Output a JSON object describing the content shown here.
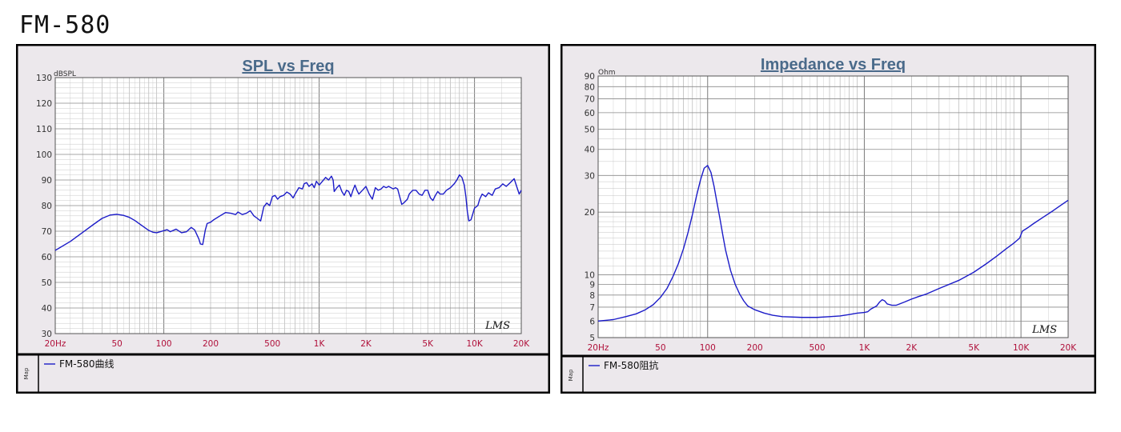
{
  "page": {
    "title": "FM-580"
  },
  "colors": {
    "line": "#1c1cc8",
    "plot_bg": "#ffffff",
    "frame_bg": "#ece8ec",
    "title": "#4a6a8a",
    "tick_x": "#b0103a",
    "grid": "#a8a8a8",
    "border": "#000000"
  },
  "chart_data": [
    {
      "type": "line",
      "title": "SPL vs Freq",
      "unit_label": "dBSPL",
      "xscale": "log",
      "xlim": [
        20,
        20000
      ],
      "ylim": [
        30,
        130
      ],
      "x_tick_labels": [
        {
          "v": 20,
          "label": "20Hz"
        },
        {
          "v": 50,
          "label": "50"
        },
        {
          "v": 100,
          "label": "100"
        },
        {
          "v": 200,
          "label": "200"
        },
        {
          "v": 500,
          "label": "500"
        },
        {
          "v": 1000,
          "label": "1K"
        },
        {
          "v": 2000,
          "label": "2K"
        },
        {
          "v": 5000,
          "label": "5K"
        },
        {
          "v": 10000,
          "label": "10K"
        },
        {
          "v": 20000,
          "label": "20K"
        }
      ],
      "y_ticks": [
        30,
        40,
        50,
        60,
        70,
        80,
        90,
        100,
        110,
        120,
        130
      ],
      "watermark": "LMS",
      "side_label": "Map",
      "legend": [
        {
          "name": "FM-580曲线"
        }
      ],
      "series": [
        {
          "name": "FM-580曲线",
          "points": [
            [
              20,
              62.5
            ],
            [
              25,
              66
            ],
            [
              30,
              69.5
            ],
            [
              35,
              72.5
            ],
            [
              40,
              75
            ],
            [
              45,
              76.3
            ],
            [
              50,
              76.6
            ],
            [
              55,
              76.2
            ],
            [
              60,
              75.4
            ],
            [
              65,
              74.2
            ],
            [
              70,
              72.8
            ],
            [
              75,
              71.5
            ],
            [
              80,
              70.3
            ],
            [
              85,
              69.6
            ],
            [
              90,
              69.4
            ],
            [
              100,
              70.2
            ],
            [
              105,
              70.6
            ],
            [
              110,
              69.8
            ],
            [
              120,
              70.8
            ],
            [
              130,
              69.4
            ],
            [
              140,
              69.8
            ],
            [
              150,
              71.5
            ],
            [
              158,
              70.5
            ],
            [
              168,
              67
            ],
            [
              172,
              65
            ],
            [
              178,
              64.8
            ],
            [
              185,
              70.5
            ],
            [
              190,
              73
            ],
            [
              200,
              73.5
            ],
            [
              210,
              74.5
            ],
            [
              230,
              76
            ],
            [
              250,
              77.3
            ],
            [
              270,
              77
            ],
            [
              290,
              76.5
            ],
            [
              300,
              77.5
            ],
            [
              320,
              76.5
            ],
            [
              340,
              77
            ],
            [
              360,
              78
            ],
            [
              380,
              76
            ],
            [
              400,
              75
            ],
            [
              420,
              74
            ],
            [
              440,
              79.5
            ],
            [
              460,
              81
            ],
            [
              480,
              80
            ],
            [
              500,
              83.5
            ],
            [
              520,
              84
            ],
            [
              540,
              82.5
            ],
            [
              560,
              83.5
            ],
            [
              590,
              84
            ],
            [
              620,
              85.3
            ],
            [
              650,
              84.5
            ],
            [
              680,
              83
            ],
            [
              700,
              84.5
            ],
            [
              740,
              87
            ],
            [
              780,
              86.5
            ],
            [
              800,
              88.5
            ],
            [
              830,
              89
            ],
            [
              860,
              87.5
            ],
            [
              900,
              88.5
            ],
            [
              930,
              87
            ],
            [
              960,
              89.5
            ],
            [
              1000,
              88
            ],
            [
              1050,
              89.5
            ],
            [
              1100,
              91
            ],
            [
              1150,
              90
            ],
            [
              1200,
              91.5
            ],
            [
              1230,
              90
            ],
            [
              1250,
              85.5
            ],
            [
              1300,
              87
            ],
            [
              1350,
              88
            ],
            [
              1400,
              85.5
            ],
            [
              1450,
              84
            ],
            [
              1500,
              86
            ],
            [
              1550,
              85.5
            ],
            [
              1600,
              83.5
            ],
            [
              1650,
              86
            ],
            [
              1700,
              88
            ],
            [
              1750,
              86
            ],
            [
              1800,
              84.5
            ],
            [
              1900,
              86
            ],
            [
              2000,
              87.5
            ],
            [
              2100,
              84.5
            ],
            [
              2200,
              82.5
            ],
            [
              2300,
              87
            ],
            [
              2400,
              86
            ],
            [
              2500,
              86.5
            ],
            [
              2600,
              87.5
            ],
            [
              2700,
              87
            ],
            [
              2800,
              87.5
            ],
            [
              2900,
              87
            ],
            [
              3000,
              86.5
            ],
            [
              3100,
              87
            ],
            [
              3200,
              86.5
            ],
            [
              3300,
              83.5
            ],
            [
              3400,
              80.5
            ],
            [
              3500,
              81
            ],
            [
              3700,
              82.5
            ],
            [
              3800,
              84.5
            ],
            [
              4000,
              86
            ],
            [
              4200,
              86
            ],
            [
              4400,
              84.5
            ],
            [
              4600,
              84
            ],
            [
              4800,
              86
            ],
            [
              5000,
              86
            ],
            [
              5200,
              83
            ],
            [
              5400,
              82
            ],
            [
              5600,
              84
            ],
            [
              5800,
              85.5
            ],
            [
              6000,
              84.5
            ],
            [
              6300,
              84.5
            ],
            [
              6600,
              86
            ],
            [
              7000,
              87
            ],
            [
              7400,
              88.5
            ],
            [
              7700,
              90
            ],
            [
              8000,
              92
            ],
            [
              8300,
              91
            ],
            [
              8600,
              88
            ],
            [
              8800,
              83.5
            ],
            [
              9000,
              77.5
            ],
            [
              9200,
              74
            ],
            [
              9500,
              74.5
            ],
            [
              10000,
              79
            ],
            [
              10500,
              80
            ],
            [
              10800,
              82.5
            ],
            [
              11200,
              84.5
            ],
            [
              11800,
              83.5
            ],
            [
              12300,
              85
            ],
            [
              13000,
              84
            ],
            [
              13600,
              86.5
            ],
            [
              14400,
              87
            ],
            [
              15200,
              88.5
            ],
            [
              16000,
              87.5
            ],
            [
              17000,
              89
            ],
            [
              18000,
              90.5
            ],
            [
              18800,
              87
            ],
            [
              19400,
              84.5
            ],
            [
              20000,
              86
            ]
          ]
        }
      ]
    },
    {
      "type": "line",
      "title": "Impedance vs Freq",
      "unit_label": "Ohm",
      "xscale": "log",
      "yscale": "log",
      "xlim": [
        20,
        20000
      ],
      "ylim": [
        5,
        90
      ],
      "x_tick_labels": [
        {
          "v": 20,
          "label": "20Hz"
        },
        {
          "v": 50,
          "label": "50"
        },
        {
          "v": 100,
          "label": "100"
        },
        {
          "v": 200,
          "label": "200"
        },
        {
          "v": 500,
          "label": "500"
        },
        {
          "v": 1000,
          "label": "1K"
        },
        {
          "v": 2000,
          "label": "2K"
        },
        {
          "v": 5000,
          "label": "5K"
        },
        {
          "v": 10000,
          "label": "10K"
        },
        {
          "v": 20000,
          "label": "20K"
        }
      ],
      "y_ticks": [
        5,
        6,
        7,
        8,
        9,
        10,
        20,
        30,
        40,
        50,
        60,
        70,
        80,
        90
      ],
      "watermark": "LMS",
      "side_label": "Map",
      "legend": [
        {
          "name": "FM-580阻抗"
        }
      ],
      "series": [
        {
          "name": "FM-580阻抗",
          "points": [
            [
              20,
              6.0
            ],
            [
              25,
              6.1
            ],
            [
              30,
              6.3
            ],
            [
              35,
              6.5
            ],
            [
              40,
              6.8
            ],
            [
              45,
              7.2
            ],
            [
              50,
              7.8
            ],
            [
              55,
              8.6
            ],
            [
              60,
              9.8
            ],
            [
              65,
              11.3
            ],
            [
              70,
              13.3
            ],
            [
              75,
              16
            ],
            [
              80,
              19.5
            ],
            [
              85,
              24
            ],
            [
              90,
              28.5
            ],
            [
              95,
              32.5
            ],
            [
              100,
              33.5
            ],
            [
              105,
              31
            ],
            [
              110,
              26.5
            ],
            [
              115,
              22
            ],
            [
              120,
              18.5
            ],
            [
              125,
              15.5
            ],
            [
              130,
              13.2
            ],
            [
              140,
              10.5
            ],
            [
              150,
              9
            ],
            [
              160,
              8.1
            ],
            [
              170,
              7.5
            ],
            [
              180,
              7.1
            ],
            [
              200,
              6.8
            ],
            [
              230,
              6.55
            ],
            [
              260,
              6.4
            ],
            [
              300,
              6.3
            ],
            [
              400,
              6.25
            ],
            [
              500,
              6.25
            ],
            [
              600,
              6.3
            ],
            [
              700,
              6.35
            ],
            [
              800,
              6.45
            ],
            [
              900,
              6.55
            ],
            [
              1000,
              6.6
            ],
            [
              1050,
              6.65
            ],
            [
              1100,
              6.85
            ],
            [
              1200,
              7.1
            ],
            [
              1250,
              7.4
            ],
            [
              1300,
              7.6
            ],
            [
              1350,
              7.5
            ],
            [
              1400,
              7.25
            ],
            [
              1500,
              7.15
            ],
            [
              1600,
              7.15
            ],
            [
              1800,
              7.4
            ],
            [
              2000,
              7.65
            ],
            [
              2200,
              7.85
            ],
            [
              2500,
              8.1
            ],
            [
              3000,
              8.6
            ],
            [
              4000,
              9.4
            ],
            [
              5000,
              10.3
            ],
            [
              6000,
              11.3
            ],
            [
              7000,
              12.3
            ],
            [
              8000,
              13.3
            ],
            [
              9000,
              14.2
            ],
            [
              9800,
              15.0
            ],
            [
              10200,
              16.2
            ],
            [
              11000,
              16.8
            ],
            [
              12000,
              17.6
            ],
            [
              14000,
              19
            ],
            [
              16000,
              20.3
            ],
            [
              18000,
              21.6
            ],
            [
              20000,
              22.8
            ]
          ]
        }
      ]
    }
  ]
}
